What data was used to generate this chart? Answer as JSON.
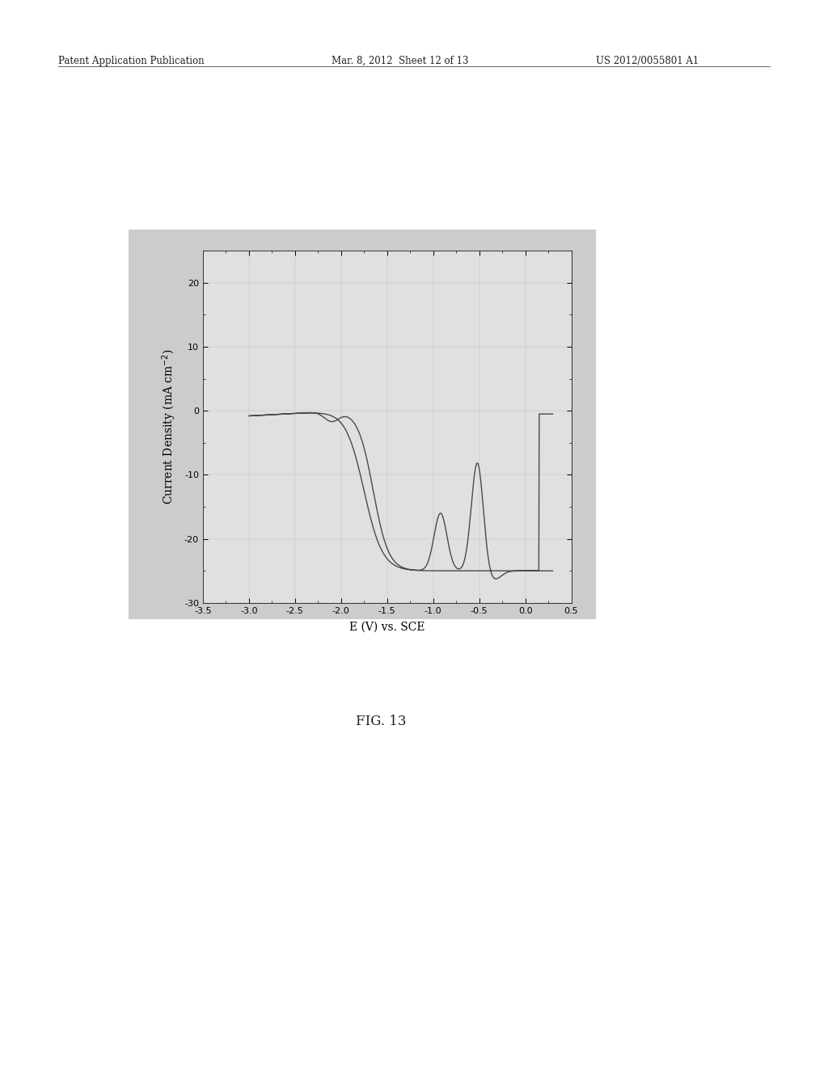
{
  "xlabel": "E (V) vs. SCE",
  "xlim": [
    -3.5,
    0.5
  ],
  "ylim": [
    -30,
    25
  ],
  "xticks": [
    -3.5,
    -3.0,
    -2.5,
    -2.0,
    -1.5,
    -1.0,
    -0.5,
    0.0,
    0.5
  ],
  "yticks": [
    -30,
    -20,
    -10,
    0,
    10,
    20
  ],
  "header_left": "Patent Application Publication",
  "header_mid": "Mar. 8, 2012  Sheet 12 of 13",
  "header_right": "US 2012/0055801 A1",
  "fig_label": "FIG. 13",
  "line_color": "#4a4a4a",
  "plot_bg": "#e0e0e0",
  "outer_bg": "#cccccc",
  "page_bg": "#ffffff"
}
